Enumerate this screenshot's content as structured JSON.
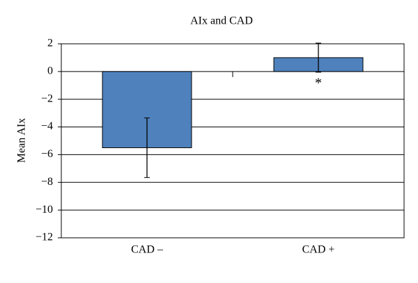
{
  "chart_data": {
    "type": "bar",
    "title": "AIx and CAD",
    "y_label": "Mean AIx",
    "categories": [
      "CAD –",
      "CAD +"
    ],
    "values": [
      -5.5,
      1.0
    ],
    "errors": [
      2.15,
      1.05
    ],
    "color": "#4f81bd",
    "annotation": "*",
    "ylim": [
      -12,
      2
    ],
    "yticks": [
      {
        "value": -12,
        "label": "−12"
      },
      {
        "value": -10,
        "label": "−10"
      },
      {
        "value": -8,
        "label": "−8"
      },
      {
        "value": -6,
        "label": "−6"
      },
      {
        "value": -4,
        "label": "−4"
      },
      {
        "value": -2,
        "label": "−2"
      },
      0,
      2
    ],
    "grid": true
  }
}
